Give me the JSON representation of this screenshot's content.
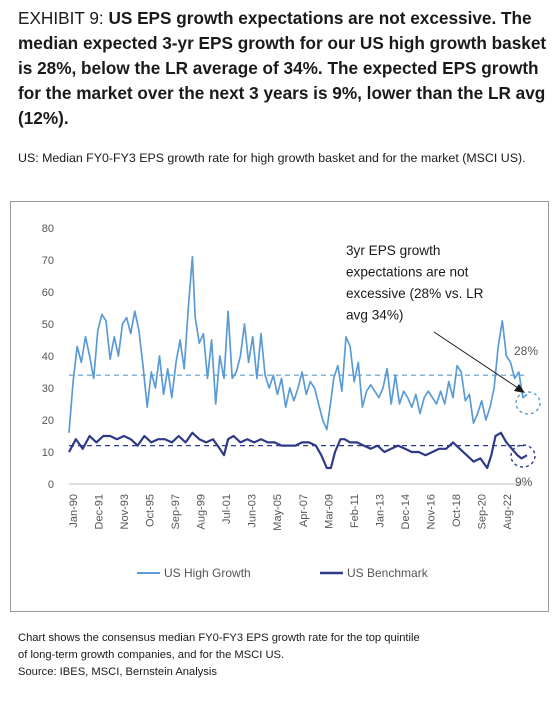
{
  "header": {
    "exhibit": "EXHIBIT 9:",
    "headline": "US EPS growth expectations are not excessive. The median expected 3-yr EPS growth for our US high growth basket is 28%, below the LR average of 34%. The expected EPS growth for the market over the next 3 years is 9%, lower than the LR avg (12%).",
    "subtitle": "US: Median FY0-FY3 EPS growth rate for high growth basket and for the market (MSCI US)."
  },
  "footnote": {
    "lines": [
      "Chart shows the consensus median FY0-FY3 EPS growth rate for the top quintile",
      "of long-term growth companies, and for the MSCI US.",
      "Source: IBES, MSCI, Bernstein Analysis"
    ]
  },
  "chart_data": {
    "type": "line",
    "title": "",
    "xlabel": "",
    "ylabel": "",
    "ylim": [
      0,
      80
    ],
    "yticks": [
      "0",
      "10",
      "20",
      "30",
      "40",
      "50",
      "60",
      "70",
      "80"
    ],
    "grid": false,
    "legend": "bottom",
    "xticks": [
      "Jan-90",
      "Dec-91",
      "Nov-93",
      "Oct-95",
      "Sep-97",
      "Aug-99",
      "Jul-01",
      "Jun-03",
      "May-05",
      "Apr-07",
      "Mar-09",
      "Feb-11",
      "Jan-13",
      "Dec-14",
      "Nov-16",
      "Oct-18",
      "Sep-20",
      "Aug-22"
    ],
    "x_range": [
      1990.0,
      2023.4
    ],
    "series": [
      {
        "name": "US High Growth",
        "color": "#5b9bd5",
        "x": [
          1990.0,
          1990.3,
          1990.6,
          1990.9,
          1991.2,
          1991.5,
          1991.8,
          1992.1,
          1992.4,
          1992.7,
          1993.0,
          1993.3,
          1993.6,
          1993.9,
          1994.2,
          1994.5,
          1994.8,
          1995.1,
          1995.4,
          1995.7,
          1996.0,
          1996.3,
          1996.6,
          1996.9,
          1997.2,
          1997.5,
          1997.8,
          1998.1,
          1998.4,
          1998.7,
          1999.0,
          1999.2,
          1999.5,
          1999.8,
          2000.1,
          2000.4,
          2000.7,
          2001.0,
          2001.3,
          2001.6,
          2001.9,
          2002.2,
          2002.5,
          2002.8,
          2003.1,
          2003.4,
          2003.7,
          2004.0,
          2004.3,
          2004.6,
          2004.9,
          2005.2,
          2005.5,
          2005.8,
          2006.1,
          2006.4,
          2006.7,
          2007.0,
          2007.3,
          2007.6,
          2007.9,
          2008.2,
          2008.5,
          2008.8,
          2009.1,
          2009.3,
          2009.6,
          2009.9,
          2010.2,
          2010.5,
          2010.8,
          2011.1,
          2011.4,
          2011.7,
          2012.0,
          2012.3,
          2012.6,
          2012.9,
          2013.2,
          2013.5,
          2013.8,
          2014.1,
          2014.4,
          2014.7,
          2015.0,
          2015.3,
          2015.6,
          2015.9,
          2016.2,
          2016.5,
          2016.8,
          2017.1,
          2017.4,
          2017.7,
          2018.0,
          2018.3,
          2018.6,
          2018.9,
          2019.2,
          2019.5,
          2019.8,
          2020.1,
          2020.4,
          2020.7,
          2021.0,
          2021.3,
          2021.6,
          2021.9,
          2022.2,
          2022.5,
          2022.8,
          2023.1,
          2023.4
        ],
        "y": [
          16,
          32,
          43,
          38,
          46,
          40,
          33,
          48,
          53,
          51,
          39,
          46,
          40,
          50,
          52,
          47,
          54,
          48,
          37,
          24,
          35,
          30,
          40,
          28,
          36,
          27,
          38,
          45,
          36,
          55,
          71,
          52,
          44,
          47,
          33,
          45,
          25,
          40,
          33,
          54,
          33,
          35,
          40,
          50,
          38,
          46,
          33,
          47,
          34,
          30,
          34,
          28,
          33,
          24,
          30,
          26,
          30,
          35,
          28,
          32,
          30,
          25,
          20,
          17,
          26,
          33,
          37,
          29,
          46,
          43,
          32,
          38,
          24,
          29,
          31,
          29,
          27,
          30,
          36,
          25,
          34,
          25,
          29,
          27,
          24,
          28,
          22,
          27,
          29,
          27,
          25,
          29,
          25,
          32,
          27,
          37,
          35,
          26,
          28,
          19,
          22,
          26,
          20,
          24,
          30,
          43,
          51,
          40,
          38,
          33,
          35,
          27,
          28
        ]
      },
      {
        "name": "US Benchmark",
        "color": "#2e3a87",
        "x": [
          1990.0,
          1990.5,
          1991.0,
          1991.5,
          1992.0,
          1992.5,
          1993.0,
          1993.5,
          1994.0,
          1994.5,
          1995.0,
          1995.5,
          1996.0,
          1996.5,
          1997.0,
          1997.5,
          1998.0,
          1998.5,
          1999.0,
          1999.5,
          2000.0,
          2000.5,
          2001.0,
          2001.3,
          2001.6,
          2002.0,
          2002.5,
          2003.0,
          2003.5,
          2004.0,
          2004.5,
          2005.0,
          2005.5,
          2006.0,
          2006.5,
          2007.0,
          2007.5,
          2008.0,
          2008.4,
          2008.8,
          2009.1,
          2009.4,
          2009.8,
          2010.1,
          2010.5,
          2011.0,
          2011.5,
          2012.0,
          2012.5,
          2013.0,
          2013.5,
          2014.0,
          2014.5,
          2015.0,
          2015.5,
          2016.0,
          2016.5,
          2017.0,
          2017.5,
          2018.0,
          2018.5,
          2019.0,
          2019.5,
          2020.0,
          2020.5,
          2020.8,
          2021.1,
          2021.5,
          2021.9,
          2022.3,
          2022.7,
          2023.0,
          2023.4
        ],
        "y": [
          10,
          14,
          11,
          15,
          13,
          15,
          15,
          14,
          15,
          14,
          12,
          15,
          13,
          14,
          14,
          13,
          15,
          13,
          16,
          14,
          13,
          14,
          11,
          9,
          14,
          15,
          13,
          14,
          13,
          14,
          13,
          13,
          12,
          12,
          12,
          13,
          13,
          12,
          9,
          5,
          5,
          10,
          14,
          14,
          13,
          13,
          12,
          11,
          12,
          10,
          11,
          12,
          11,
          10,
          10,
          9,
          10,
          11,
          11,
          13,
          11,
          9,
          7,
          8,
          5,
          9,
          15,
          16,
          13,
          11,
          9,
          8,
          9
        ]
      }
    ],
    "averages": [
      {
        "series": "US High Growth",
        "value": 34
      },
      {
        "series": "US Benchmark",
        "value": 12
      }
    ],
    "annotations": {
      "callout": [
        "3yr EPS growth",
        "expectations are not",
        "excessive (28% vs. LR",
        "avg 34%)"
      ],
      "label_high": "28%",
      "label_bench": "9%"
    }
  }
}
